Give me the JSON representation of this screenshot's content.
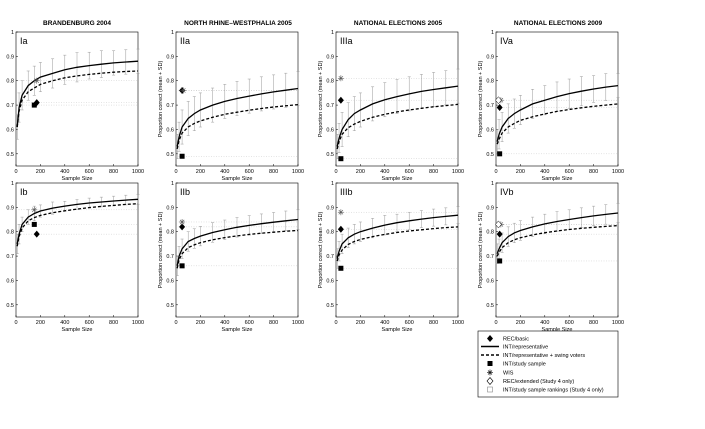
{
  "figure": {
    "column_titles": [
      "BRANDENBURG 2004",
      "NORTH RHINE–WESTPHALIA 2005",
      "NATIONAL ELECTIONS 2005",
      "NATIONAL ELECTIONS 2009"
    ],
    "xlabel": "Sample Size",
    "ylabel": "Proportion correct (mean + SD)",
    "x_ticks": [
      "0",
      "200",
      "400",
      "600",
      "800",
      "1000"
    ],
    "y_ticks": [
      "0.5",
      "0.6",
      "0.7",
      "0.8",
      "0.9",
      "1"
    ]
  },
  "legend": {
    "entries": [
      {
        "marker": "filled-diamond",
        "label": "REC/basic"
      },
      {
        "marker": "solid-line",
        "label": "INT/representative"
      },
      {
        "marker": "dashed-line",
        "label": "INT/representative + swing voters"
      },
      {
        "marker": "filled-square",
        "label": "INT/study sample"
      },
      {
        "marker": "asterisk",
        "label": "WIS"
      },
      {
        "marker": "open-diamond",
        "label": "REC/extended (Study 4 only)"
      },
      {
        "marker": "open-square",
        "label": "INT/study sample rankings (Study 4 only)"
      }
    ]
  },
  "chart_data": [
    {
      "type": "line",
      "panel_label": "Ia",
      "xlim": [
        0,
        1000
      ],
      "ylim": [
        0.45,
        1
      ],
      "x": [
        10,
        25,
        50,
        100,
        150,
        200,
        300,
        400,
        500,
        600,
        700,
        800,
        900,
        1000
      ],
      "series": [
        {
          "name": "INT/representative",
          "style": "solid",
          "values": [
            0.61,
            0.69,
            0.74,
            0.78,
            0.8,
            0.815,
            0.83,
            0.845,
            0.855,
            0.862,
            0.868,
            0.873,
            0.877,
            0.88
          ]
        },
        {
          "name": "INT/representative + swing voters",
          "style": "dashed",
          "values": [
            0.61,
            0.675,
            0.72,
            0.755,
            0.77,
            0.785,
            0.8,
            0.812,
            0.82,
            0.826,
            0.831,
            0.835,
            0.838,
            0.84
          ]
        }
      ],
      "sd": [
        0.05,
        0.06,
        0.06,
        0.06,
        0.06,
        0.06,
        0.06,
        0.06,
        0.06,
        0.055,
        0.055,
        0.05,
        0.05,
        0.05
      ],
      "points": [
        {
          "name": "REC/basic",
          "marker": "filled-diamond",
          "x": 170,
          "y": 0.71
        },
        {
          "name": "INT/study sample",
          "marker": "filled-square",
          "x": 150,
          "y": 0.7
        },
        {
          "name": "WIS",
          "marker": "asterisk",
          "x": 170,
          "y": 0.8
        }
      ]
    },
    {
      "type": "line",
      "panel_label": "IIa",
      "xlim": [
        0,
        1000
      ],
      "ylim": [
        0.45,
        1
      ],
      "x": [
        10,
        25,
        50,
        100,
        150,
        200,
        300,
        400,
        500,
        600,
        700,
        800,
        900,
        1000
      ],
      "series": [
        {
          "name": "INT/representative",
          "style": "solid",
          "values": [
            0.53,
            0.57,
            0.61,
            0.645,
            0.665,
            0.68,
            0.7,
            0.715,
            0.727,
            0.737,
            0.746,
            0.754,
            0.761,
            0.768
          ]
        },
        {
          "name": "INT/representative + swing voters",
          "style": "dashed",
          "values": [
            0.52,
            0.555,
            0.585,
            0.61,
            0.625,
            0.635,
            0.65,
            0.662,
            0.671,
            0.679,
            0.686,
            0.692,
            0.697,
            0.702
          ]
        }
      ],
      "sd": [
        0.05,
        0.06,
        0.07,
        0.07,
        0.07,
        0.07,
        0.07,
        0.07,
        0.07,
        0.07,
        0.07,
        0.07,
        0.07,
        0.07
      ],
      "points": [
        {
          "name": "REC/basic",
          "marker": "filled-diamond",
          "x": 50,
          "y": 0.76
        },
        {
          "name": "INT/study sample",
          "marker": "filled-square",
          "x": 50,
          "y": 0.49
        },
        {
          "name": "WIS",
          "marker": "asterisk",
          "x": 60,
          "y": 0.76
        }
      ]
    },
    {
      "type": "line",
      "panel_label": "IIIa",
      "xlim": [
        0,
        1000
      ],
      "ylim": [
        0.45,
        1
      ],
      "x": [
        10,
        25,
        50,
        100,
        150,
        200,
        300,
        400,
        500,
        600,
        700,
        800,
        900,
        1000
      ],
      "series": [
        {
          "name": "INT/representative",
          "style": "solid",
          "values": [
            0.53,
            0.565,
            0.6,
            0.64,
            0.665,
            0.68,
            0.705,
            0.722,
            0.735,
            0.746,
            0.756,
            0.764,
            0.771,
            0.778
          ]
        },
        {
          "name": "INT/representative + swing voters",
          "style": "dashed",
          "values": [
            0.52,
            0.55,
            0.58,
            0.607,
            0.622,
            0.633,
            0.65,
            0.662,
            0.672,
            0.68,
            0.687,
            0.693,
            0.698,
            0.703
          ]
        }
      ],
      "sd": [
        0.05,
        0.06,
        0.07,
        0.07,
        0.07,
        0.07,
        0.07,
        0.07,
        0.07,
        0.07,
        0.07,
        0.07,
        0.07,
        0.07
      ],
      "points": [
        {
          "name": "REC/basic",
          "marker": "filled-diamond",
          "x": 40,
          "y": 0.72
        },
        {
          "name": "INT/study sample",
          "marker": "filled-square",
          "x": 40,
          "y": 0.48
        },
        {
          "name": "WIS",
          "marker": "asterisk",
          "x": 40,
          "y": 0.81
        }
      ]
    },
    {
      "type": "line",
      "panel_label": "IVa",
      "xlim": [
        0,
        1000
      ],
      "ylim": [
        0.45,
        1
      ],
      "x": [
        10,
        25,
        50,
        100,
        150,
        200,
        300,
        400,
        500,
        600,
        700,
        800,
        900,
        1000
      ],
      "series": [
        {
          "name": "INT/representative",
          "style": "solid",
          "values": [
            0.55,
            0.58,
            0.61,
            0.645,
            0.665,
            0.68,
            0.705,
            0.72,
            0.735,
            0.747,
            0.757,
            0.766,
            0.774,
            0.78
          ]
        },
        {
          "name": "INT/representative + swing voters",
          "style": "dashed",
          "values": [
            0.54,
            0.56,
            0.585,
            0.61,
            0.625,
            0.637,
            0.652,
            0.664,
            0.674,
            0.682,
            0.689,
            0.695,
            0.7,
            0.705
          ]
        }
      ],
      "sd": [
        0.05,
        0.06,
        0.06,
        0.06,
        0.06,
        0.06,
        0.06,
        0.06,
        0.06,
        0.06,
        0.06,
        0.055,
        0.055,
        0.05
      ],
      "points": [
        {
          "name": "REC/basic",
          "marker": "filled-diamond",
          "x": 30,
          "y": 0.69
        },
        {
          "name": "INT/study sample",
          "marker": "filled-square",
          "x": 30,
          "y": 0.5
        },
        {
          "name": "WIS",
          "marker": "asterisk",
          "x": 40,
          "y": 0.72
        },
        {
          "name": "REC/extended (Study 4 only)",
          "marker": "open-diamond",
          "x": 20,
          "y": 0.72
        }
      ]
    },
    {
      "type": "line",
      "panel_label": "Ib",
      "xlim": [
        0,
        1000
      ],
      "ylim": [
        0.45,
        1
      ],
      "x": [
        10,
        25,
        50,
        100,
        150,
        200,
        300,
        400,
        500,
        600,
        700,
        800,
        900,
        1000
      ],
      "series": [
        {
          "name": "INT/representative",
          "style": "solid",
          "values": [
            0.75,
            0.79,
            0.83,
            0.86,
            0.875,
            0.885,
            0.897,
            0.905,
            0.912,
            0.918,
            0.922,
            0.926,
            0.93,
            0.933
          ]
        },
        {
          "name": "INT/representative + swing voters",
          "style": "dashed",
          "values": [
            0.74,
            0.78,
            0.815,
            0.845,
            0.858,
            0.867,
            0.878,
            0.886,
            0.893,
            0.899,
            0.904,
            0.908,
            0.912,
            0.915
          ]
        }
      ],
      "sd": [
        0.04,
        0.04,
        0.03,
        0.03,
        0.03,
        0.025,
        0.025,
        0.02,
        0.02,
        0.02,
        0.02,
        0.02,
        0.02,
        0.02
      ],
      "points": [
        {
          "name": "REC/basic",
          "marker": "filled-diamond",
          "x": 170,
          "y": 0.79
        },
        {
          "name": "INT/study sample",
          "marker": "filled-square",
          "x": 150,
          "y": 0.83
        },
        {
          "name": "WIS",
          "marker": "asterisk",
          "x": 150,
          "y": 0.89
        }
      ]
    },
    {
      "type": "line",
      "panel_label": "IIb",
      "xlim": [
        0,
        1000
      ],
      "ylim": [
        0.45,
        1
      ],
      "x": [
        10,
        25,
        50,
        100,
        150,
        200,
        300,
        400,
        500,
        600,
        700,
        800,
        900,
        1000
      ],
      "series": [
        {
          "name": "INT/representative",
          "style": "solid",
          "values": [
            0.66,
            0.7,
            0.73,
            0.76,
            0.772,
            0.782,
            0.797,
            0.808,
            0.818,
            0.826,
            0.833,
            0.839,
            0.845,
            0.85
          ]
        },
        {
          "name": "INT/representative + swing voters",
          "style": "dashed",
          "values": [
            0.65,
            0.685,
            0.71,
            0.735,
            0.746,
            0.755,
            0.767,
            0.776,
            0.783,
            0.789,
            0.794,
            0.798,
            0.802,
            0.805
          ]
        }
      ],
      "sd": [
        0.04,
        0.04,
        0.04,
        0.04,
        0.04,
        0.04,
        0.04,
        0.04,
        0.04,
        0.04,
        0.04,
        0.04,
        0.04,
        0.04
      ],
      "points": [
        {
          "name": "REC/basic",
          "marker": "filled-diamond",
          "x": 50,
          "y": 0.82
        },
        {
          "name": "INT/study sample",
          "marker": "filled-square",
          "x": 50,
          "y": 0.66
        },
        {
          "name": "WIS",
          "marker": "asterisk",
          "x": 50,
          "y": 0.84
        }
      ]
    },
    {
      "type": "line",
      "panel_label": "IIIb",
      "xlim": [
        0,
        1000
      ],
      "ylim": [
        0.45,
        1
      ],
      "x": [
        10,
        25,
        50,
        100,
        150,
        200,
        300,
        400,
        500,
        600,
        700,
        800,
        900,
        1000
      ],
      "series": [
        {
          "name": "INT/representative",
          "style": "solid",
          "values": [
            0.69,
            0.72,
            0.75,
            0.775,
            0.79,
            0.8,
            0.815,
            0.827,
            0.837,
            0.845,
            0.852,
            0.858,
            0.863,
            0.868
          ]
        },
        {
          "name": "INT/representative + swing voters",
          "style": "dashed",
          "values": [
            0.68,
            0.705,
            0.725,
            0.748,
            0.76,
            0.768,
            0.78,
            0.789,
            0.797,
            0.803,
            0.808,
            0.813,
            0.817,
            0.82
          ]
        }
      ],
      "sd": [
        0.04,
        0.04,
        0.04,
        0.04,
        0.04,
        0.04,
        0.04,
        0.04,
        0.035,
        0.035,
        0.035,
        0.035,
        0.035,
        0.035
      ],
      "points": [
        {
          "name": "REC/basic",
          "marker": "filled-diamond",
          "x": 40,
          "y": 0.81
        },
        {
          "name": "INT/study sample",
          "marker": "filled-square",
          "x": 40,
          "y": 0.65
        },
        {
          "name": "WIS",
          "marker": "asterisk",
          "x": 40,
          "y": 0.88
        }
      ]
    },
    {
      "type": "line",
      "panel_label": "IVb",
      "xlim": [
        0,
        1000
      ],
      "ylim": [
        0.45,
        1
      ],
      "x": [
        10,
        25,
        50,
        100,
        150,
        200,
        300,
        400,
        500,
        600,
        700,
        800,
        900,
        1000
      ],
      "series": [
        {
          "name": "INT/representative",
          "style": "solid",
          "values": [
            0.71,
            0.73,
            0.755,
            0.78,
            0.795,
            0.805,
            0.82,
            0.832,
            0.842,
            0.85,
            0.858,
            0.865,
            0.871,
            0.877
          ]
        },
        {
          "name": "INT/representative + swing voters",
          "style": "dashed",
          "values": [
            0.7,
            0.715,
            0.735,
            0.755,
            0.767,
            0.775,
            0.787,
            0.796,
            0.803,
            0.809,
            0.814,
            0.818,
            0.822,
            0.825
          ]
        }
      ],
      "sd": [
        0.04,
        0.04,
        0.04,
        0.04,
        0.04,
        0.04,
        0.04,
        0.04,
        0.04,
        0.04,
        0.04,
        0.04,
        0.04,
        0.04
      ],
      "points": [
        {
          "name": "REC/basic",
          "marker": "filled-diamond",
          "x": 30,
          "y": 0.79
        },
        {
          "name": "INT/study sample",
          "marker": "filled-square",
          "x": 30,
          "y": 0.68
        },
        {
          "name": "WIS",
          "marker": "asterisk",
          "x": 40,
          "y": 0.83
        },
        {
          "name": "REC/extended (Study 4 only)",
          "marker": "open-diamond",
          "x": 20,
          "y": 0.83
        }
      ]
    }
  ]
}
